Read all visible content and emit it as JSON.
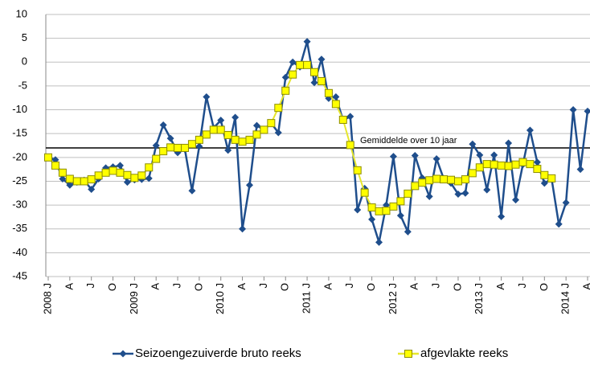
{
  "chart_data": {
    "type": "line",
    "categories": [
      "2008 J",
      null,
      null,
      "A",
      null,
      null,
      "J",
      null,
      null,
      "O",
      null,
      null,
      "2009 J",
      null,
      null,
      "A",
      null,
      null,
      "J",
      null,
      null,
      "O",
      null,
      null,
      "2010 J",
      null,
      null,
      "A",
      null,
      null,
      "J",
      null,
      null,
      "O",
      null,
      null,
      "2011 J",
      null,
      null,
      "A",
      null,
      null,
      "J",
      null,
      null,
      "O",
      null,
      null,
      "2012 J",
      null,
      null,
      "A",
      null,
      null,
      "J",
      null,
      null,
      "O",
      null,
      null,
      "2013 J",
      null,
      null,
      "A",
      null,
      null,
      "J",
      null,
      null,
      "O",
      null,
      null,
      "2014 J",
      null,
      null,
      "A"
    ],
    "series": [
      {
        "name": "Seizoengezuiverde bruto reeks",
        "color": "#1f4e8c",
        "marker": "diamond",
        "values": [
          -20,
          -20.5,
          -24.5,
          -25.8,
          -25.2,
          -24.8,
          -26.7,
          -24.5,
          -22.2,
          -22,
          -21.7,
          -25.2,
          -24.7,
          -24.6,
          -24.4,
          -17.5,
          -13.2,
          -16,
          -19,
          -18.3,
          -27,
          -17.7,
          -7.3,
          -13.8,
          -12.2,
          -18.5,
          -11.6,
          -35,
          -25.8,
          -13.3,
          -14.2,
          -12.8,
          -14.8,
          -3.2,
          0,
          -1,
          4.3,
          -4.3,
          0.6,
          -7.6,
          -7.3,
          -12.2,
          -11.4,
          -31,
          -26.5,
          -33,
          -37.8,
          -30,
          -19.8,
          -32.2,
          -35.6,
          -19.6,
          -24.3,
          -28.2,
          -20.3,
          -24.5,
          -25.4,
          -27.7,
          -27.5,
          -17.2,
          -19.5,
          -26.8,
          -19.5,
          -32.4,
          -17,
          -28.9,
          -21.5,
          -14.3,
          -21,
          -25.4,
          -24.5,
          -34,
          -29.5,
          -10,
          -22.5,
          -10.3
        ]
      },
      {
        "name": "afgevlakte reeks",
        "color": "#ffff00",
        "line_color": "#e6e62e",
        "marker": "square",
        "values": [
          -20,
          -21.7,
          -23.2,
          -24.5,
          -25,
          -25,
          -24.6,
          -23.8,
          -23.2,
          -22.8,
          -23.2,
          -23.7,
          -24.3,
          -23.8,
          -22.1,
          -20.3,
          -18.7,
          -17.9,
          -18,
          -18,
          -17.2,
          -16.3,
          -15.2,
          -14.2,
          -14.2,
          -15.3,
          -16.3,
          -16.7,
          -16.3,
          -15.2,
          -14.2,
          -12.8,
          -9.6,
          -6,
          -2.6,
          -0.6,
          -0.6,
          -2.1,
          -4,
          -6.5,
          -8.8,
          -12.1,
          -17.4,
          -22.7,
          -27.4,
          -30.5,
          -31.3,
          -31.2,
          -30.3,
          -29.2,
          -27.6,
          -26,
          -25.3,
          -24.8,
          -24.5,
          -24.6,
          -24.7,
          -25,
          -24.6,
          -23.3,
          -22.1,
          -21.4,
          -21.5,
          -21.7,
          -21.8,
          -21.5,
          -21,
          -21.4,
          -22.4,
          -23.7,
          -24.4,
          null,
          null,
          null,
          null,
          null
        ]
      }
    ],
    "reference_line": {
      "value": -18,
      "label": "Gemiddelde over 10 jaar",
      "color": "#000000"
    },
    "ylim": [
      -45,
      10
    ],
    "yticks": [
      -45,
      -40,
      -35,
      -30,
      -25,
      -20,
      -15,
      -10,
      -5,
      0,
      5,
      10
    ],
    "grid": true,
    "legend": "bottom"
  }
}
